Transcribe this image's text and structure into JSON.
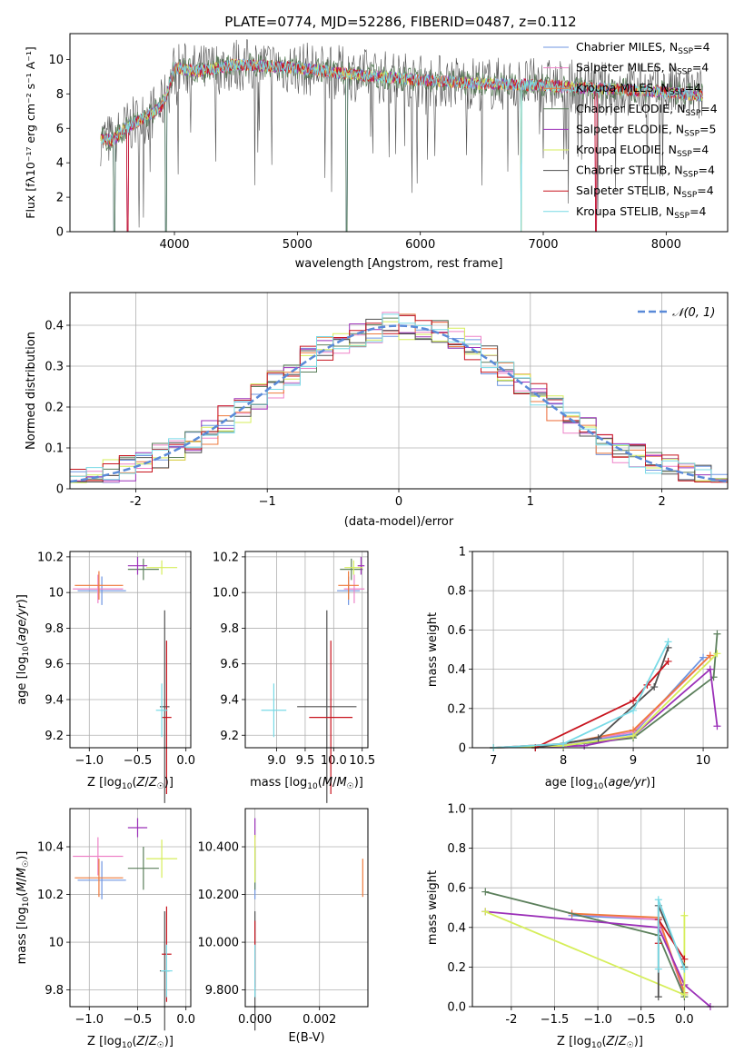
{
  "figure": {
    "title": "PLATE=0774, MJD=52286, FIBERID=0487, z=0.112"
  },
  "chart_data": [
    {
      "id": "spectrum",
      "type": "line",
      "xlabel": "wavelength [Angstrom, rest frame]",
      "ylabel": "Flux [f$_\\lambda$10$^{-17}$ erg cm$^{-2}$ s$^{-1}$ A$^{-1}$]",
      "ylabel_display": "Flux [fλ10⁻¹⁷ erg cm⁻² s⁻¹ A⁻¹]",
      "xlim": [
        3150,
        8500
      ],
      "ylim": [
        0,
        11.5
      ],
      "xticks": [
        4000,
        5000,
        6000,
        7000,
        8000
      ],
      "yticks": [
        0,
        2,
        4,
        6,
        8,
        10
      ],
      "grid": false,
      "legend_loc": "upper right",
      "series": [
        {
          "name": "Chabrier MILES, N_SSP=4",
          "label": "Chabrier MILES, N",
          "sub": "SSP",
          "tail": "=4",
          "color": "#6f96e2"
        },
        {
          "name": "Salpeter MILES, N_SSP=4",
          "label": "Salpeter MILES, N",
          "sub": "SSP",
          "tail": "=4",
          "color": "#ee82c8"
        },
        {
          "name": "Kroupa MILES, N_SSP=4",
          "label": "Kroupa MILES, N",
          "sub": "SSP",
          "tail": "=4",
          "color": "#ee7a3c"
        },
        {
          "name": "Chabrier ELODIE, N_SSP=4",
          "label": "Chabrier ELODIE, N",
          "sub": "SSP",
          "tail": "=4",
          "color": "#5b7f5b"
        },
        {
          "name": "Salpeter ELODIE, N_SSP=5",
          "label": "Salpeter ELODIE, N",
          "sub": "SSP",
          "tail": "=5",
          "color": "#9b30b8"
        },
        {
          "name": "Kroupa ELODIE, N_SSP=4",
          "label": "Kroupa ELODIE, N",
          "sub": "SSP",
          "tail": "=4",
          "color": "#d6ee5a"
        },
        {
          "name": "Chabrier STELIB, N_SSP=4",
          "label": "Chabrier STELIB, N",
          "sub": "SSP",
          "tail": "=4",
          "color": "#505050"
        },
        {
          "name": "Salpeter STELIB, N_SSP=4",
          "label": "Salpeter STELIB, N",
          "sub": "SSP",
          "tail": "=4",
          "color": "#c8141e"
        },
        {
          "name": "Kroupa STELIB, N_SSP=4",
          "label": "Kroupa STELIB, N",
          "sub": "SSP",
          "tail": "=4",
          "color": "#78dae6"
        }
      ],
      "data_profile": {
        "x": [
          3400,
          3500,
          3600,
          3700,
          3800,
          3900,
          3950,
          4000,
          4200,
          4500,
          5000,
          5500,
          6000,
          6500,
          7000,
          7200,
          7500,
          8000,
          8300
        ],
        "y": [
          5.4,
          5.3,
          6.0,
          6.4,
          6.8,
          7.3,
          8.2,
          9.5,
          9.3,
          9.7,
          9.5,
          9.1,
          8.8,
          8.6,
          8.5,
          8.4,
          8.3,
          8.1,
          7.9
        ]
      },
      "dropouts": [
        3510,
        3620,
        3930,
        5400,
        6820,
        7430
      ]
    },
    {
      "id": "residuals",
      "type": "histogram",
      "xlabel": "(data-model)/error",
      "ylabel": "Normed distribution",
      "xlim": [
        -2.5,
        2.5
      ],
      "ylim": [
        0,
        0.48
      ],
      "xticks": [
        -2,
        -1,
        0,
        1,
        2
      ],
      "yticks": [
        0.0,
        0.1,
        0.2,
        0.3,
        0.4
      ],
      "grid": true,
      "legend_loc": "upper right",
      "legend": "𝒩(0, 1)",
      "reference_curve": {
        "name": "N(0,1)",
        "color": "#5a8ad8"
      }
    },
    {
      "id": "age_vs_Z",
      "type": "errorbar",
      "xlabel": "Z [log10(Z/Z☉)]",
      "ylabel": "age  [log10(age/yr)]",
      "xlim": [
        -1.2,
        0.05
      ],
      "ylim": [
        9.13,
        10.23
      ],
      "xticks": [
        -1.0,
        -0.5,
        0.0
      ],
      "yticks": [
        9.2,
        9.4,
        9.6,
        9.8,
        10.0,
        10.2
      ],
      "grid": true,
      "points": [
        {
          "color": "#6f96e2",
          "x": -0.87,
          "xerr": 0.25,
          "y": 10.01,
          "yerr": 0.08
        },
        {
          "color": "#ee82c8",
          "x": -0.91,
          "xerr": 0.26,
          "y": 10.02,
          "yerr": 0.08
        },
        {
          "color": "#ee7a3c",
          "x": -0.9,
          "xerr": 0.25,
          "y": 10.04,
          "yerr": 0.08
        },
        {
          "color": "#5b7f5b",
          "x": -0.44,
          "xerr": 0.16,
          "y": 10.13,
          "yerr": 0.06
        },
        {
          "color": "#9b30b8",
          "x": -0.5,
          "xerr": 0.1,
          "y": 10.15,
          "yerr": 0.05
        },
        {
          "color": "#d6ee5a",
          "x": -0.25,
          "xerr": 0.16,
          "y": 10.14,
          "yerr": 0.04
        },
        {
          "color": "#505050",
          "x": -0.22,
          "xerr": 0.05,
          "y": 9.36,
          "yerr": 0.54
        },
        {
          "color": "#c8141e",
          "x": -0.2,
          "xerr": 0.05,
          "y": 9.3,
          "yerr": 0.43
        },
        {
          "color": "#78dae6",
          "x": -0.25,
          "xerr": 0.06,
          "y": 9.34,
          "yerr": 0.15
        }
      ]
    },
    {
      "id": "age_vs_mass",
      "type": "errorbar",
      "xlabel": "mass [log10(M/M☉)]",
      "ylabel": "",
      "xlim": [
        8.45,
        10.6
      ],
      "ylim": [
        9.13,
        10.23
      ],
      "xticks": [
        9.0,
        9.5,
        10.0,
        10.5
      ],
      "yticks": [
        9.2,
        9.4,
        9.6,
        9.8,
        10.0,
        10.2
      ],
      "grid": true,
      "points": [
        {
          "color": "#6f96e2",
          "x": 10.26,
          "xerr": 0.2,
          "y": 10.01,
          "yerr": 0.08
        },
        {
          "color": "#ee82c8",
          "x": 10.36,
          "xerr": 0.18,
          "y": 10.02,
          "yerr": 0.08
        },
        {
          "color": "#ee7a3c",
          "x": 10.26,
          "xerr": 0.18,
          "y": 10.04,
          "yerr": 0.08
        },
        {
          "color": "#5b7f5b",
          "x": 10.31,
          "xerr": 0.2,
          "y": 10.13,
          "yerr": 0.06
        },
        {
          "color": "#9b30b8",
          "x": 10.48,
          "xerr": 0.06,
          "y": 10.15,
          "yerr": 0.05
        },
        {
          "color": "#d6ee5a",
          "x": 10.35,
          "xerr": 0.16,
          "y": 10.14,
          "yerr": 0.04
        },
        {
          "color": "#505050",
          "x": 9.88,
          "xerr": 0.52,
          "y": 9.36,
          "yerr": 0.54
        },
        {
          "color": "#c8141e",
          "x": 9.95,
          "xerr": 0.38,
          "y": 9.3,
          "yerr": 0.43
        },
        {
          "color": "#78dae6",
          "x": 8.95,
          "xerr": 0.22,
          "y": 9.34,
          "yerr": 0.15
        }
      ]
    },
    {
      "id": "massweight_vs_age",
      "type": "line",
      "xlabel": "age  [log10(age/yr)]",
      "ylabel": "mass weight",
      "xlim": [
        6.7,
        10.35
      ],
      "ylim": [
        0,
        1
      ],
      "xticks": [
        7,
        8,
        9,
        10
      ],
      "yticks": [
        0.0,
        0.2,
        0.4,
        0.6,
        0.8,
        1.0
      ],
      "grid": true,
      "series": [
        {
          "color": "#6f96e2",
          "x": [
            7.0,
            8.0,
            9.0,
            10.0
          ],
          "y": [
            0.0,
            0.02,
            0.07,
            0.46
          ]
        },
        {
          "color": "#ee82c8",
          "x": [
            7.0,
            8.0,
            9.0,
            10.1
          ],
          "y": [
            0.0,
            0.02,
            0.08,
            0.47
          ]
        },
        {
          "color": "#ee7a3c",
          "x": [
            7.0,
            8.0,
            9.0,
            10.1
          ],
          "y": [
            0.0,
            0.02,
            0.09,
            0.47
          ]
        },
        {
          "color": "#5b7f5b",
          "x": [
            7.0,
            8.0,
            9.0,
            10.15,
            10.2
          ],
          "y": [
            0.0,
            0.01,
            0.05,
            0.36,
            0.58
          ]
        },
        {
          "color": "#9b30b8",
          "x": [
            7.0,
            8.3,
            9.0,
            10.1,
            10.2
          ],
          "y": [
            0.0,
            0.01,
            0.06,
            0.4,
            0.11
          ]
        },
        {
          "color": "#d6ee5a",
          "x": [
            7.0,
            8.0,
            9.0,
            10.2
          ],
          "y": [
            0.0,
            0.01,
            0.06,
            0.48
          ]
        },
        {
          "color": "#505050",
          "x": [
            7.6,
            8.5,
            9.3,
            9.5
          ],
          "y": [
            0.0,
            0.05,
            0.31,
            0.51
          ]
        },
        {
          "color": "#c8141e",
          "x": [
            7.6,
            9.0,
            9.2,
            9.5
          ],
          "y": [
            0.0,
            0.24,
            0.32,
            0.44
          ]
        },
        {
          "color": "#78dae6",
          "x": [
            7.0,
            8.0,
            9.0,
            9.5
          ],
          "y": [
            0.0,
            0.02,
            0.19,
            0.54
          ]
        }
      ]
    },
    {
      "id": "mass_vs_Z",
      "type": "errorbar",
      "xlabel": "Z [log10(Z/Z☉)]",
      "ylabel": "mass [log10(M/M☉)]",
      "xlim": [
        -1.2,
        0.05
      ],
      "ylim": [
        9.73,
        10.56
      ],
      "xticks": [
        -1.0,
        -0.5,
        0.0
      ],
      "yticks": [
        9.8,
        10.0,
        10.2,
        10.4
      ],
      "grid": true,
      "points": [
        {
          "color": "#6f96e2",
          "x": -0.87,
          "xerr": 0.25,
          "y": 10.26,
          "yerr": 0.08
        },
        {
          "color": "#ee82c8",
          "x": -0.91,
          "xerr": 0.26,
          "y": 10.36,
          "yerr": 0.08
        },
        {
          "color": "#ee7a3c",
          "x": -0.9,
          "xerr": 0.25,
          "y": 10.27,
          "yerr": 0.08
        },
        {
          "color": "#5b7f5b",
          "x": -0.44,
          "xerr": 0.16,
          "y": 10.31,
          "yerr": 0.09
        },
        {
          "color": "#9b30b8",
          "x": -0.5,
          "xerr": 0.1,
          "y": 10.48,
          "yerr": 0.04
        },
        {
          "color": "#d6ee5a",
          "x": -0.25,
          "xerr": 0.16,
          "y": 10.35,
          "yerr": 0.08
        },
        {
          "color": "#505050",
          "x": -0.22,
          "xerr": 0.05,
          "y": 9.88,
          "yerr": 0.25
        },
        {
          "color": "#c8141e",
          "x": -0.2,
          "xerr": 0.05,
          "y": 9.95,
          "yerr": 0.2
        },
        {
          "color": "#78dae6",
          "x": -0.2,
          "xerr": 0.06,
          "y": 9.88,
          "yerr": 0.11
        }
      ]
    },
    {
      "id": "mass_vs_EBV",
      "type": "errorbar",
      "xlabel": "E(B-V)",
      "ylabel": "",
      "xlim": [
        -0.0003,
        0.0035
      ],
      "ylim": [
        9.73,
        10.56
      ],
      "xticks": [
        0.0,
        0.002
      ],
      "yticks": [
        9.8,
        10.0,
        10.2,
        10.4
      ],
      "grid": true,
      "points": [
        {
          "color": "#6f96e2",
          "x": 0.0,
          "xerr": 0,
          "y": 10.26,
          "yerr": 0.08
        },
        {
          "color": "#ee82c8",
          "x": 0.0,
          "xerr": 0,
          "y": 10.36,
          "yerr": 0.08
        },
        {
          "color": "#ee7a3c",
          "x": 0.00334,
          "xerr": 0,
          "y": 10.27,
          "yerr": 0.08
        },
        {
          "color": "#5b7f5b",
          "x": 0.0,
          "xerr": 0,
          "y": 10.31,
          "yerr": 0.09
        },
        {
          "color": "#9b30b8",
          "x": 0.0,
          "xerr": 0,
          "y": 10.48,
          "yerr": 0.04
        },
        {
          "color": "#d6ee5a",
          "x": 0.0,
          "xerr": 0,
          "y": 10.35,
          "yerr": 0.1
        },
        {
          "color": "#505050",
          "x": 0.0,
          "xerr": 0,
          "y": 9.88,
          "yerr": 0.25
        },
        {
          "color": "#c8141e",
          "x": 0.0,
          "xerr": 0,
          "y": 9.95,
          "yerr": 0.14
        },
        {
          "color": "#78dae6",
          "x": 0.0,
          "xerr": 0,
          "y": 9.88,
          "yerr": 0.11
        }
      ]
    },
    {
      "id": "massweight_vs_Z",
      "type": "line",
      "xlabel": "Z [log10(Z/Z☉)]",
      "ylabel": "mass weight",
      "xlim": [
        -2.45,
        0.5
      ],
      "ylim": [
        0,
        1
      ],
      "xticks": [
        -2.0,
        -1.5,
        -1.0,
        -0.5,
        0.0
      ],
      "yticks": [
        0.0,
        0.2,
        0.4,
        0.6,
        0.8,
        1.0
      ],
      "grid": true,
      "series": [
        {
          "color": "#6f96e2",
          "x": [
            -1.3,
            -0.3,
            0.0
          ],
          "y": [
            0.46,
            0.44,
            0.07
          ]
        },
        {
          "color": "#ee82c8",
          "x": [
            -1.3,
            -0.3,
            0.0
          ],
          "y": [
            0.47,
            0.44,
            0.06
          ]
        },
        {
          "color": "#ee7a3c",
          "x": [
            -1.3,
            -0.3,
            0.0
          ],
          "y": [
            0.47,
            0.45,
            0.07
          ]
        },
        {
          "color": "#5b7f5b",
          "x": [
            -2.3,
            -0.3,
            0.0
          ],
          "y": [
            0.58,
            0.36,
            0.05
          ]
        },
        {
          "color": "#9b30b8",
          "x": [
            -2.3,
            -0.3,
            0.0,
            0.3
          ],
          "y": [
            0.48,
            0.4,
            0.11,
            0.0
          ]
        },
        {
          "color": "#d6ee5a",
          "x": [
            -2.3,
            0.0,
            0.0
          ],
          "y": [
            0.48,
            0.06,
            0.46
          ]
        },
        {
          "color": "#505050",
          "x": [
            -0.3,
            -0.3,
            0.0
          ],
          "y": [
            0.05,
            0.51,
            0.2
          ]
        },
        {
          "color": "#c8141e",
          "x": [
            -0.3,
            -0.3,
            0.0
          ],
          "y": [
            0.32,
            0.44,
            0.24
          ]
        },
        {
          "color": "#78dae6",
          "x": [
            -0.3,
            -0.3,
            0.0
          ],
          "y": [
            0.19,
            0.54,
            0.19
          ]
        }
      ]
    }
  ]
}
